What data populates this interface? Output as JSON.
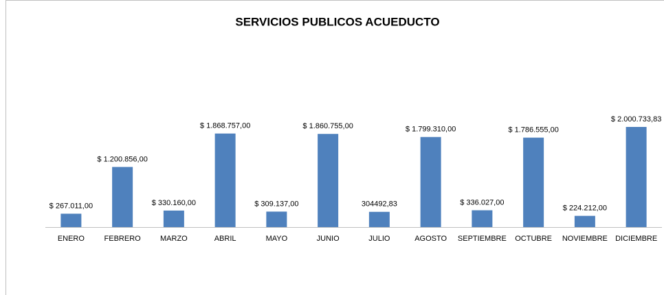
{
  "chart_data": {
    "type": "bar",
    "title": "SERVICIOS PUBLICOS ACUEDUCTO",
    "categories": [
      "ENERO",
      "FEBRERO",
      "MARZO",
      "ABRIL",
      "MAYO",
      "JUNIO",
      "JULIO",
      "AGOSTO",
      "SEPTIEMBRE",
      "OCTUBRE",
      "NOVIEMBRE",
      "DICIEMBRE"
    ],
    "values": [
      267011,
      1200856,
      330160,
      1868757,
      309137,
      1860755,
      304492.83,
      1799310,
      336027,
      1786555,
      224212,
      2000733.83
    ],
    "value_labels": [
      "$ 267.011,00",
      "$ 1.200.856,00",
      "$ 330.160,00",
      "$ 1.868.757,00",
      "$ 309.137,00",
      "$ 1.860.755,00",
      "304492,83",
      "$ 1.799.310,00",
      "$ 336.027,00",
      "$ 1.786.555,00",
      "$ 224.212,00",
      "$ 2.000.733,83"
    ],
    "color": "#4f81bd"
  }
}
